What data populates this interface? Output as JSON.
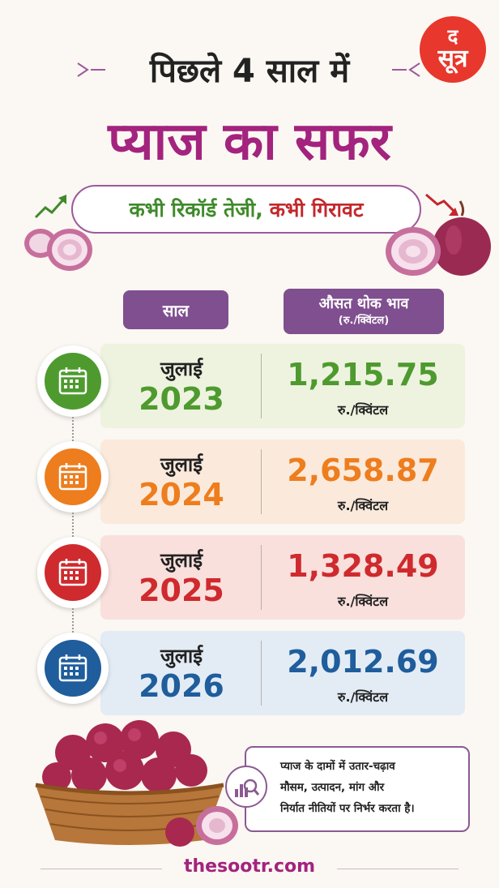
{
  "logo": {
    "line1": "द",
    "line2": "सूत्र"
  },
  "header": {
    "title1": "पिछले 4 साल में",
    "title2": "प्याज का सफर",
    "subtitle_a": "कभी रिकॉर्ड तेजी,",
    "subtitle_b": "कभी गिरावट"
  },
  "table": {
    "col_year": "साल",
    "col_price": "औसत थोक भाव",
    "col_price_unit": "(रु./क्विंटल)",
    "rows": [
      {
        "month": "जुलाई",
        "year": "2023",
        "price": "1,215.75",
        "unit": "रु./क्विंटल",
        "color": "#4e9a2f",
        "bg": "#eef3df"
      },
      {
        "month": "जुलाई",
        "year": "2024",
        "price": "2,658.87",
        "unit": "रु./क्विंटल",
        "color": "#ee7d1e",
        "bg": "#fbeadb"
      },
      {
        "month": "जुलाई",
        "year": "2025",
        "price": "1,328.49",
        "unit": "रु./क्विंटल",
        "color": "#cf2a2e",
        "bg": "#f9e0dc"
      },
      {
        "month": "जुलाई",
        "year": "2026",
        "price": "2,012.69",
        "unit": "रु./क्विंटल",
        "color": "#1f5d9c",
        "bg": "#e3ecf5"
      }
    ]
  },
  "note": {
    "line1": "प्याज के दामों में उतार-चढ़ाव",
    "line2": "मौसम, उत्पादन, मांग और",
    "line3": "निर्यात नीतियों पर निर्भर करता है।"
  },
  "footer": {
    "site": "thesootr.com"
  },
  "icons": {
    "row_icon": "calendar-icon",
    "note_icon": "chart-magnifier-icon"
  }
}
